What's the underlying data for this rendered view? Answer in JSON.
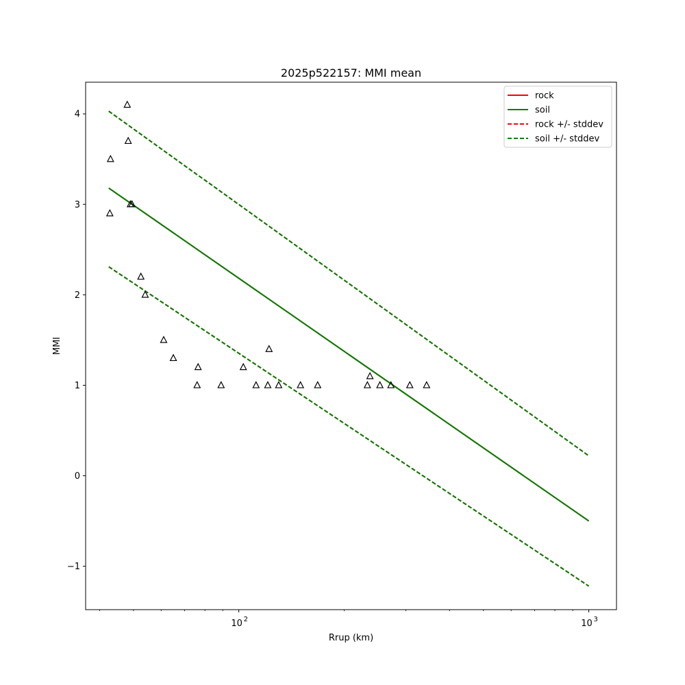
{
  "chart_data": {
    "type": "scatter",
    "title": "2025p522157: MMI mean",
    "xlabel": "Rrup (km)",
    "ylabel": "MMI",
    "xscale": "log",
    "xlim": [
      36.5,
      1200
    ],
    "ylim": [
      -1.48,
      4.35
    ],
    "grid": false,
    "legend_placement": "top-right",
    "x_tick_labels": [
      {
        "value": 100,
        "base": "10",
        "exp": "2"
      },
      {
        "value": 1000,
        "base": "10",
        "exp": "3"
      }
    ],
    "y_ticks": [
      -1,
      0,
      1,
      2,
      3,
      4
    ],
    "y_tick_labels": [
      "−1",
      "0",
      "1",
      "2",
      "3",
      "4"
    ],
    "colors": {
      "rock": "#ff0000",
      "soil": "#008000",
      "overlap": "#2b6b00",
      "points": "#000000"
    },
    "series": [
      {
        "name": "rock",
        "style": "solid",
        "color": "#ff0000",
        "x": [
          42.5,
          1000
        ],
        "y": [
          3.18,
          -0.5
        ]
      },
      {
        "name": "soil",
        "style": "solid",
        "color": "#008000",
        "x": [
          42.5,
          1000
        ],
        "y": [
          3.18,
          -0.5
        ]
      },
      {
        "name": "rock +/- stddev",
        "style": "dashed",
        "color": "#ff0000",
        "x": [
          42.5,
          1000
        ],
        "y_upper": [
          4.03,
          0.22
        ],
        "y_lower": [
          2.31,
          -1.22
        ]
      },
      {
        "name": "soil +/- stddev",
        "style": "dashed",
        "color": "#008000",
        "x": [
          42.5,
          1000
        ],
        "y_upper": [
          4.03,
          0.22
        ],
        "y_lower": [
          2.31,
          -1.22
        ]
      }
    ],
    "observations": {
      "marker": "triangle",
      "x": [
        42.8,
        43.0,
        48.0,
        48.3,
        49.0,
        49.5,
        52.5,
        54.0,
        61.0,
        65.0,
        76.0,
        76.5,
        89.0,
        103,
        112,
        121,
        122,
        130,
        150,
        168,
        233,
        237,
        253,
        272,
        308,
        344
      ],
      "y": [
        2.9,
        3.5,
        4.1,
        3.7,
        3.0,
        3.0,
        2.2,
        2.0,
        1.5,
        1.3,
        1.0,
        1.2,
        1.0,
        1.2,
        1.0,
        1.0,
        1.4,
        1.0,
        1.0,
        1.0,
        1.0,
        1.1,
        1.0,
        1.0,
        1.0,
        1.0
      ]
    }
  }
}
